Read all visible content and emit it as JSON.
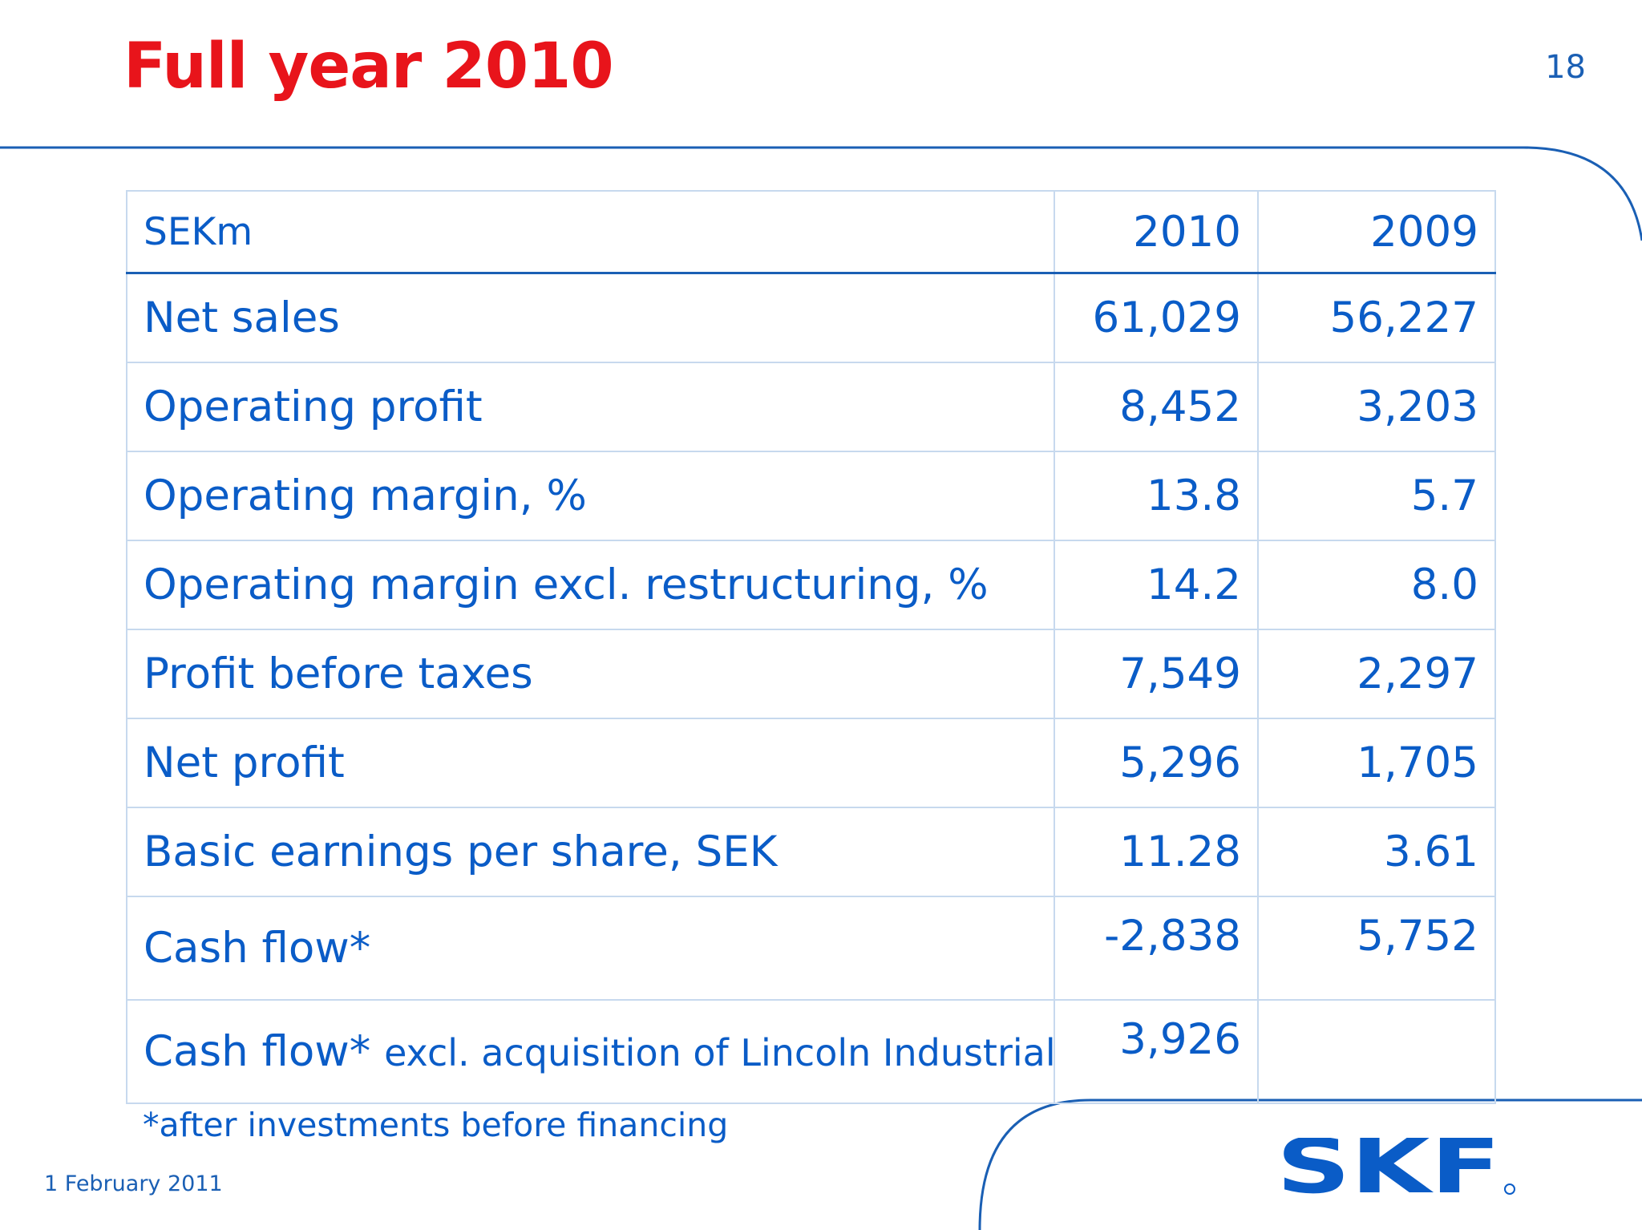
{
  "slide": {
    "title": "Full year 2010",
    "page_number": "18",
    "date": "1 February 2011",
    "footnote": "*after investments before financing",
    "logo_text": "SKF",
    "colors": {
      "title": "#e8141b",
      "text": "#0a5cc7",
      "rule": "#1a5fb4",
      "grid": "#c7d9ee"
    }
  },
  "table": {
    "header": {
      "label": "SEKm",
      "col1": "2010",
      "col2": "2009"
    },
    "rows": [
      {
        "label": "Net sales",
        "v2010": "61,029",
        "v2009": "56,227"
      },
      {
        "label": "Operating profit",
        "v2010": "8,452",
        "v2009": "3,203"
      },
      {
        "label": "Operating margin, %",
        "v2010": "13.8",
        "v2009": "5.7"
      },
      {
        "label": "Operating margin excl. restructuring, %",
        "v2010": "14.2",
        "v2009": "8.0"
      },
      {
        "label": "Profit before taxes",
        "v2010": "7,549",
        "v2009": "2,297"
      },
      {
        "label": "Net profit",
        "v2010": "5,296",
        "v2009": "1,705"
      },
      {
        "label": "Basic earnings per share, SEK",
        "v2010": "11.28",
        "v2009": "3.61"
      },
      {
        "label": "Cash flow*",
        "v2010": "-2,838",
        "v2009": "5,752"
      },
      {
        "label": "Cash flow*",
        "label_suffix": "excl. acquisition of Lincoln Industrial",
        "v2010": "3,926",
        "v2009": ""
      }
    ]
  }
}
